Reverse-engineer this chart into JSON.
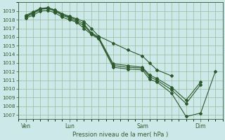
{
  "bg_color": "#cce8e8",
  "grid_color": "#99bb99",
  "line_color": "#2d5a2d",
  "xlabel_text": "Pression niveau de la mer( hPa )",
  "ylim": [
    1006.5,
    1020.0
  ],
  "yticks": [
    1007,
    1008,
    1009,
    1010,
    1011,
    1012,
    1013,
    1014,
    1015,
    1016,
    1017,
    1018,
    1019
  ],
  "xlim": [
    0,
    28
  ],
  "xtick_positions": [
    1,
    7,
    17,
    25
  ],
  "xtick_labels": [
    "Ven",
    "Lun",
    "Sam",
    "Dim"
  ],
  "series": [
    {
      "x": [
        1,
        2,
        3,
        4,
        5,
        6,
        7,
        8,
        9,
        10,
        11,
        13,
        15,
        17,
        18,
        19,
        21,
        23,
        25,
        27
      ],
      "y": [
        1018.2,
        1018.5,
        1019.0,
        1019.1,
        1018.8,
        1018.3,
        1018.0,
        1017.7,
        1017.0,
        1016.3,
        1015.8,
        1012.5,
        1012.3,
        1012.2,
        1011.1,
        1010.8,
        1009.5,
        1006.8,
        1007.2,
        1012.0
      ]
    },
    {
      "x": [
        1,
        2,
        3,
        4,
        5,
        6,
        7,
        8,
        9,
        10,
        11,
        13,
        15,
        17,
        18,
        19,
        21,
        23,
        25
      ],
      "y": [
        1018.3,
        1018.7,
        1019.2,
        1019.3,
        1019.0,
        1018.5,
        1018.2,
        1017.8,
        1017.3,
        1016.4,
        1015.9,
        1012.7,
        1012.5,
        1012.4,
        1011.4,
        1011.0,
        1009.9,
        1008.3,
        1010.5
      ]
    },
    {
      "x": [
        1,
        2,
        3,
        4,
        5,
        6,
        7,
        8,
        9,
        10,
        11,
        13,
        15,
        17,
        18,
        19,
        21,
        23,
        25
      ],
      "y": [
        1018.4,
        1018.8,
        1019.25,
        1019.35,
        1019.1,
        1018.6,
        1018.3,
        1018.0,
        1017.5,
        1016.5,
        1016.0,
        1012.9,
        1012.7,
        1012.5,
        1011.6,
        1011.2,
        1010.2,
        1008.7,
        1010.8
      ]
    },
    {
      "x": [
        1,
        2,
        3,
        4,
        5,
        6,
        7,
        8,
        9,
        10,
        11,
        13,
        15,
        17,
        18,
        19,
        21
      ],
      "y": [
        1018.5,
        1018.9,
        1019.3,
        1019.4,
        1019.15,
        1018.7,
        1018.4,
        1018.1,
        1017.8,
        1017.0,
        1016.1,
        1015.3,
        1014.5,
        1013.8,
        1013.0,
        1012.2,
        1011.5
      ]
    }
  ]
}
